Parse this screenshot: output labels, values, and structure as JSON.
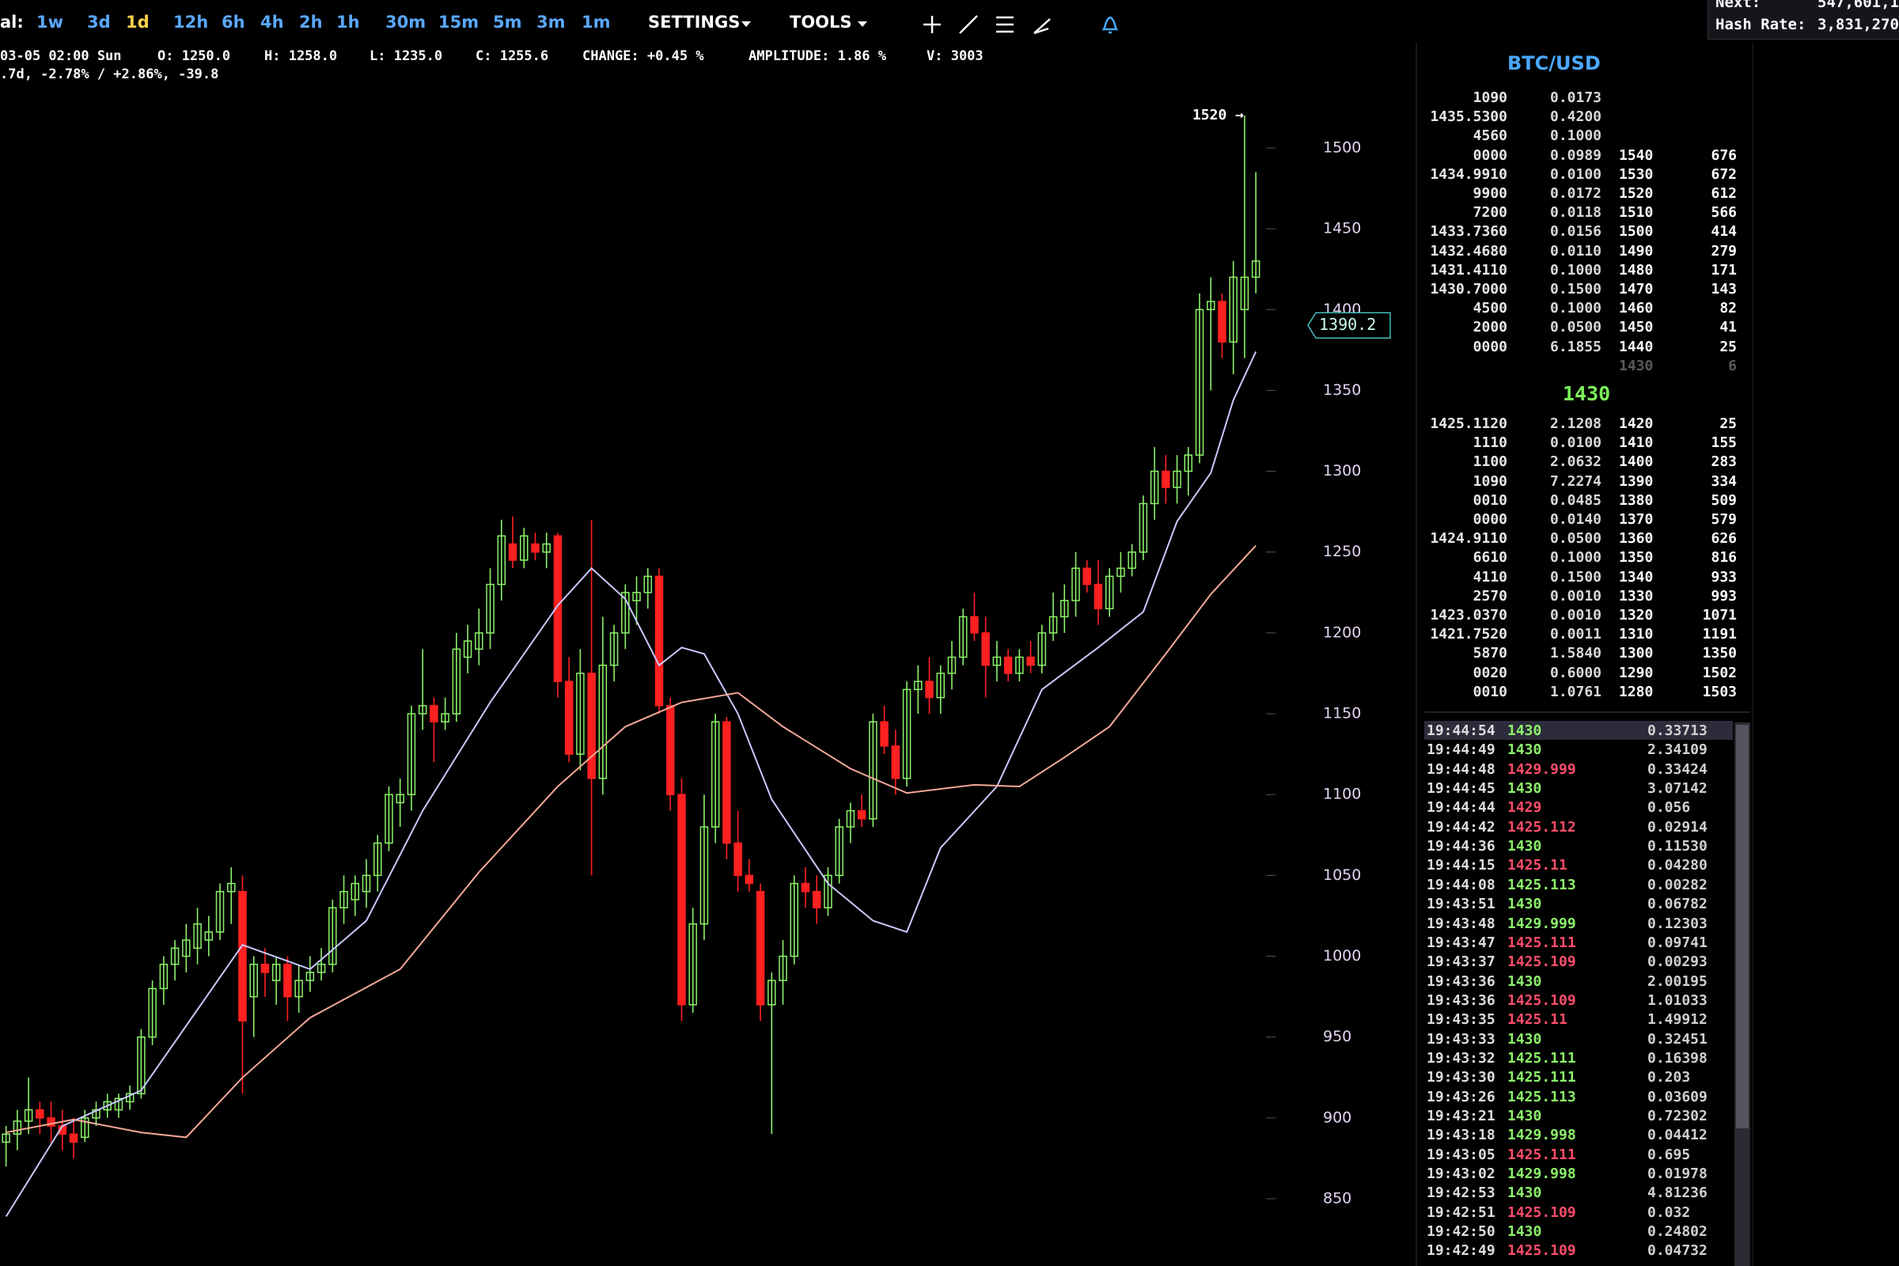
{
  "toolbar": {
    "interval_label": "al:",
    "intervals": [
      "1w",
      "3d",
      "1d",
      "12h",
      "6h",
      "4h",
      "2h",
      "1h",
      "30m",
      "15m",
      "5m",
      "3m",
      "1m"
    ],
    "active_interval": "1d",
    "menus": [
      "SETTINGS",
      "TOOLS"
    ]
  },
  "stats": {
    "next_label": "Next:",
    "next_value": "547,601,1",
    "hash_rate_label": "Hash Rate:",
    "hash_rate_value": "3,831,270"
  },
  "info": {
    "items": [
      "03-05 02:00 Sun",
      "O: 1250.0",
      "H: 1258.0",
      "L: 1235.0",
      "C: 1255.6",
      "CHANGE: +0.45 %",
      "AMPLITUDE: 1.86 %",
      "V: 3003"
    ],
    "line2": ".7d, -2.78% / +2.86%, -39.8"
  },
  "chart_data": {
    "type": "candlestick",
    "open": [
      885,
      890,
      898,
      905,
      900,
      895,
      890,
      888,
      900,
      905,
      905,
      910,
      915,
      950,
      980,
      995,
      1000,
      1005,
      1010,
      1015,
      1040,
      1040,
      975,
      995,
      985,
      995,
      975,
      985,
      990,
      995,
      1030,
      1035,
      1040,
      1050,
      1070,
      1095,
      1100,
      1150,
      1155,
      1145,
      1150,
      1185,
      1190,
      1200,
      1230,
      1255,
      1245,
      1255,
      1250,
      1260,
      1170,
      1125,
      1175,
      1110,
      1180,
      1200,
      1220,
      1225,
      1235,
      1155,
      1100,
      970,
      1020,
      1080,
      1145,
      1070,
      1050,
      1040,
      970,
      985,
      1000,
      1045,
      1040,
      1030,
      1050,
      1080,
      1090,
      1085,
      1145,
      1130,
      1110,
      1165,
      1170,
      1160,
      1175,
      1185,
      1210,
      1200,
      1180,
      1185,
      1175,
      1185,
      1180,
      1200,
      1210,
      1220,
      1240,
      1230,
      1215,
      1235,
      1240,
      1250,
      1280,
      1300,
      1290,
      1300,
      1310,
      1400,
      1405,
      1380,
      1400,
      1420
    ],
    "high": [
      895,
      905,
      925,
      910,
      910,
      905,
      900,
      905,
      910,
      915,
      915,
      920,
      955,
      985,
      1000,
      1010,
      1020,
      1030,
      1025,
      1045,
      1055,
      1050,
      1000,
      1005,
      1000,
      1000,
      995,
      1000,
      1005,
      1035,
      1050,
      1050,
      1060,
      1075,
      1105,
      1110,
      1155,
      1190,
      1160,
      1160,
      1200,
      1205,
      1215,
      1240,
      1270,
      1272,
      1265,
      1262,
      1262,
      1262,
      1185,
      1190,
      1270,
      1210,
      1205,
      1230,
      1235,
      1240,
      1240,
      1160,
      1110,
      1030,
      1100,
      1150,
      1148,
      1090,
      1060,
      1045,
      990,
      1010,
      1050,
      1055,
      1050,
      1055,
      1085,
      1095,
      1100,
      1150,
      1155,
      1140,
      1170,
      1180,
      1185,
      1180,
      1195,
      1215,
      1225,
      1210,
      1195,
      1190,
      1190,
      1195,
      1205,
      1225,
      1230,
      1250,
      1245,
      1245,
      1240,
      1250,
      1255,
      1285,
      1315,
      1310,
      1310,
      1315,
      1410,
      1420,
      1410,
      1430,
      1520,
      1485
    ],
    "low": [
      870,
      880,
      890,
      890,
      885,
      880,
      875,
      885,
      895,
      900,
      900,
      905,
      912,
      945,
      970,
      985,
      990,
      995,
      1000,
      1010,
      1020,
      915,
      950,
      975,
      970,
      960,
      965,
      978,
      985,
      990,
      1020,
      1025,
      1030,
      1040,
      1065,
      1080,
      1090,
      1140,
      1120,
      1140,
      1145,
      1175,
      1180,
      1190,
      1220,
      1240,
      1240,
      1245,
      1240,
      1160,
      1120,
      1115,
      1050,
      1100,
      1170,
      1190,
      1205,
      1215,
      1150,
      1090,
      960,
      965,
      1010,
      1070,
      1060,
      1040,
      1040,
      960,
      890,
      970,
      995,
      1030,
      1020,
      1025,
      1045,
      1070,
      1080,
      1080,
      1125,
      1100,
      1105,
      1150,
      1150,
      1150,
      1165,
      1180,
      1195,
      1160,
      1170,
      1170,
      1170,
      1175,
      1175,
      1195,
      1200,
      1210,
      1225,
      1205,
      1210,
      1225,
      1235,
      1245,
      1270,
      1280,
      1280,
      1285,
      1305,
      1350,
      1370,
      1360,
      1370,
      1410
    ],
    "close": [
      890,
      898,
      905,
      900,
      895,
      890,
      885,
      900,
      905,
      910,
      912,
      915,
      950,
      980,
      995,
      1005,
      1010,
      1020,
      1015,
      1040,
      1045,
      960,
      995,
      990,
      995,
      975,
      985,
      990,
      995,
      1030,
      1040,
      1045,
      1050,
      1070,
      1100,
      1100,
      1150,
      1155,
      1145,
      1150,
      1190,
      1195,
      1200,
      1230,
      1260,
      1245,
      1260,
      1250,
      1255,
      1170,
      1125,
      1175,
      1110,
      1180,
      1200,
      1225,
      1225,
      1235,
      1155,
      1100,
      970,
      1020,
      1080,
      1145,
      1070,
      1050,
      1045,
      970,
      985,
      1000,
      1045,
      1040,
      1030,
      1050,
      1080,
      1090,
      1085,
      1145,
      1130,
      1110,
      1165,
      1170,
      1160,
      1175,
      1185,
      1210,
      1200,
      1180,
      1185,
      1175,
      1185,
      1180,
      1200,
      1210,
      1220,
      1240,
      1230,
      1215,
      1235,
      1240,
      1250,
      1280,
      1300,
      1290,
      1300,
      1310,
      1400,
      1405,
      1380,
      1420,
      1420,
      1430
    ],
    "up_color": "#8cf26a",
    "down_color": "#ff2020",
    "moving_averages": [
      {
        "color": "#c8c8ff",
        "x": [
          0,
          5,
          12,
          21,
          27,
          32,
          37,
          43,
          49,
          52,
          55,
          58,
          60,
          62,
          65,
          68,
          73,
          77,
          80,
          83,
          88,
          92,
          97,
          101,
          104,
          107,
          109,
          111
        ],
        "values": [
          839,
          895,
          917,
          1007,
          992,
          1022,
          1090,
          1157,
          1217,
          1240,
          1221,
          1180,
          1191,
          1187,
          1150,
          1097,
          1045,
          1022,
          1015,
          1067,
          1105,
          1165,
          1191,
          1213,
          1269,
          1299,
          1344,
          1374
        ]
      },
      {
        "color": "#f4a898",
        "x": [
          0,
          6,
          12,
          16,
          21,
          27,
          35,
          42,
          49,
          55,
          60,
          65,
          69,
          75,
          80,
          86,
          90,
          94,
          98,
          103,
          107,
          111
        ],
        "values": [
          891,
          899,
          891,
          888,
          925,
          962,
          992,
          1052,
          1105,
          1142,
          1157,
          1163,
          1142,
          1116,
          1101,
          1106,
          1105,
          1123,
          1142,
          1187,
          1224,
          1254
        ]
      }
    ],
    "ylim": [
      808.4,
      1540.1
    ],
    "yticks": [
      850,
      900,
      950,
      1000,
      1050,
      1100,
      1150,
      1200,
      1250,
      1300,
      1350,
      1400,
      1450,
      1500
    ],
    "max_label": {
      "value": 1520,
      "label": "1520 →"
    },
    "last_price": 1390.2
  },
  "order_book": {
    "title": "BTC/USD",
    "asks": [
      {
        "price": "1090",
        "amount": "0.0173"
      },
      {
        "price": "1435.5300",
        "amount": "0.4200"
      },
      {
        "price": "4560",
        "amount": "0.1000"
      },
      {
        "price": "0000",
        "amount": "0.0989",
        "level": "1540",
        "total": "676"
      },
      {
        "price": "1434.9910",
        "amount": "0.0100",
        "level": "1530",
        "total": "672"
      },
      {
        "price": "9900",
        "amount": "0.0172",
        "level": "1520",
        "total": "612"
      },
      {
        "price": "7200",
        "amount": "0.0118",
        "level": "1510",
        "total": "566"
      },
      {
        "price": "1433.7360",
        "amount": "0.0156",
        "level": "1500",
        "total": "414"
      },
      {
        "price": "1432.4680",
        "amount": "0.0110",
        "level": "1490",
        "total": "279"
      },
      {
        "price": "1431.4110",
        "amount": "0.1000",
        "level": "1480",
        "total": "171"
      },
      {
        "price": "1430.7000",
        "amount": "0.1500",
        "level": "1470",
        "total": "143"
      },
      {
        "price": "4500",
        "amount": "0.1000",
        "level": "1460",
        "total": "82"
      },
      {
        "price": "2000",
        "amount": "0.0500",
        "level": "1450",
        "total": "41"
      },
      {
        "price": "0000",
        "amount": "6.1855",
        "level": "1440",
        "total": "25"
      },
      {
        "level": "1430",
        "total": "6"
      }
    ],
    "mid": "1430",
    "bids": [
      {
        "price": "1425.1120",
        "amount": "2.1208",
        "level": "1420",
        "total": "25"
      },
      {
        "price": "1110",
        "amount": "0.0100",
        "level": "1410",
        "total": "155"
      },
      {
        "price": "1100",
        "amount": "2.0632",
        "level": "1400",
        "total": "283"
      },
      {
        "price": "1090",
        "amount": "7.2274",
        "level": "1390",
        "total": "334"
      },
      {
        "price": "0010",
        "amount": "0.0485",
        "level": "1380",
        "total": "509"
      },
      {
        "price": "0000",
        "amount": "0.0140",
        "level": "1370",
        "total": "579"
      },
      {
        "price": "1424.9110",
        "amount": "0.0500",
        "level": "1360",
        "total": "626"
      },
      {
        "price": "6610",
        "amount": "0.1000",
        "level": "1350",
        "total": "816"
      },
      {
        "price": "4110",
        "amount": "0.1500",
        "level": "1340",
        "total": "933"
      },
      {
        "price": "2570",
        "amount": "0.0010",
        "level": "1330",
        "total": "993"
      },
      {
        "price": "1423.0370",
        "amount": "0.0010",
        "level": "1320",
        "total": "1071"
      },
      {
        "price": "1421.7520",
        "amount": "0.0011",
        "level": "1310",
        "total": "1191"
      },
      {
        "price": "5870",
        "amount": "1.5840",
        "level": "1300",
        "total": "1350"
      },
      {
        "price": "0020",
        "amount": "0.6000",
        "level": "1290",
        "total": "1502"
      },
      {
        "price": "0010",
        "amount": "1.0761",
        "level": "1280",
        "total": "1503"
      }
    ]
  },
  "trades": {
    "buy_color": "#8cf26a",
    "sell_color": "#ff4d6a",
    "rows": [
      {
        "time": "19:44:54",
        "price": "1430",
        "amount": "0.33713",
        "side": "buy"
      },
      {
        "time": "19:44:49",
        "price": "1430",
        "amount": "2.34109",
        "side": "buy"
      },
      {
        "time": "19:44:48",
        "price": "1429.999",
        "amount": "0.33424",
        "side": "sell"
      },
      {
        "time": "19:44:45",
        "price": "1430",
        "amount": "3.07142",
        "side": "buy"
      },
      {
        "time": "19:44:44",
        "price": "1429",
        "amount": "0.056",
        "side": "sell"
      },
      {
        "time": "19:44:42",
        "price": "1425.112",
        "amount": "0.02914",
        "side": "sell"
      },
      {
        "time": "19:44:36",
        "price": "1430",
        "amount": "0.11530",
        "side": "buy"
      },
      {
        "time": "19:44:15",
        "price": "1425.11",
        "amount": "0.04280",
        "side": "sell"
      },
      {
        "time": "19:44:08",
        "price": "1425.113",
        "amount": "0.00282",
        "side": "buy"
      },
      {
        "time": "19:43:51",
        "price": "1430",
        "amount": "0.06782",
        "side": "buy"
      },
      {
        "time": "19:43:48",
        "price": "1429.999",
        "amount": "0.12303",
        "side": "buy"
      },
      {
        "time": "19:43:47",
        "price": "1425.111",
        "amount": "0.09741",
        "side": "sell"
      },
      {
        "time": "19:43:37",
        "price": "1425.109",
        "amount": "0.00293",
        "side": "sell"
      },
      {
        "time": "19:43:36",
        "price": "1430",
        "amount": "2.00195",
        "side": "buy"
      },
      {
        "time": "19:43:36",
        "price": "1425.109",
        "amount": "1.01033",
        "side": "sell"
      },
      {
        "time": "19:43:35",
        "price": "1425.11",
        "amount": "1.49912",
        "side": "sell"
      },
      {
        "time": "19:43:33",
        "price": "1430",
        "amount": "0.32451",
        "side": "buy"
      },
      {
        "time": "19:43:32",
        "price": "1425.111",
        "amount": "0.16398",
        "side": "buy"
      },
      {
        "time": "19:43:30",
        "price": "1425.111",
        "amount": "0.203",
        "side": "buy"
      },
      {
        "time": "19:43:26",
        "price": "1425.113",
        "amount": "0.03609",
        "side": "buy"
      },
      {
        "time": "19:43:21",
        "price": "1430",
        "amount": "0.72302",
        "side": "buy"
      },
      {
        "time": "19:43:18",
        "price": "1429.998",
        "amount": "0.04412",
        "side": "buy"
      },
      {
        "time": "19:43:05",
        "price": "1425.111",
        "amount": "0.695",
        "side": "sell"
      },
      {
        "time": "19:43:02",
        "price": "1429.998",
        "amount": "0.01978",
        "side": "buy"
      },
      {
        "time": "19:42:53",
        "price": "1430",
        "amount": "4.81236",
        "side": "buy"
      },
      {
        "time": "19:42:51",
        "price": "1425.109",
        "amount": "0.032",
        "side": "sell"
      },
      {
        "time": "19:42:50",
        "price": "1430",
        "amount": "0.24802",
        "side": "buy"
      },
      {
        "time": "19:42:49",
        "price": "1425.109",
        "amount": "0.04732",
        "side": "sell"
      }
    ]
  }
}
